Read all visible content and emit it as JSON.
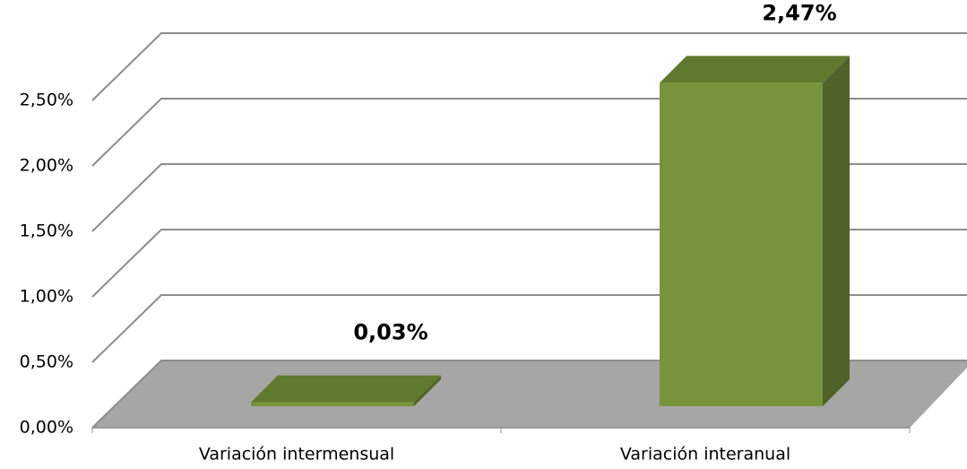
{
  "chart_data": {
    "type": "bar3d",
    "categories": [
      "Variación intermensual",
      "Variación interanual"
    ],
    "values": [
      0.03,
      2.47
    ],
    "value_labels": [
      "0,03%",
      "2,47%"
    ],
    "color": "#77933c",
    "ylim": [
      0,
      2.5
    ],
    "yticks": [
      {
        "value": 0,
        "label": "0,00%"
      },
      {
        "value": 0.5,
        "label": "0,50%"
      },
      {
        "value": 1,
        "label": "1,00%"
      },
      {
        "value": 1.5,
        "label": "1,50%"
      },
      {
        "value": 2,
        "label": "2,00%"
      },
      {
        "value": 2.5,
        "label": "2,50%"
      }
    ],
    "grid": true
  }
}
